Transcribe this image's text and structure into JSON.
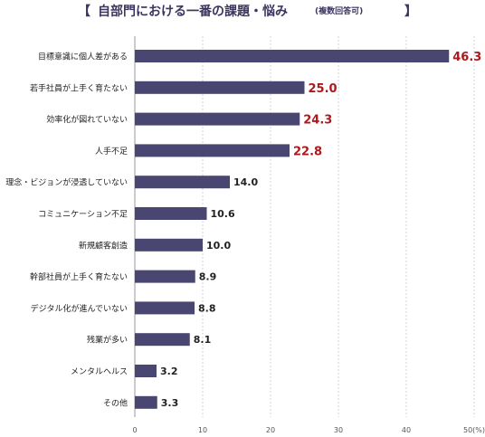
{
  "title": {
    "open_bracket": "【",
    "main": "自部門における一番の課題・悩み",
    "sub": "(複数回答可)",
    "close_bracket": "】"
  },
  "colors": {
    "bar": "#4a4672",
    "highlight_label": "#b0171c",
    "normal_label": "#222222",
    "grid": "#c8c8c8",
    "title": "#3b3560"
  },
  "chart_data": {
    "type": "bar",
    "orientation": "horizontal",
    "title": "自部門における一番の課題・悩み(複数回答可)",
    "categories": [
      "目標意識に個人差がある",
      "若手社員が上手く育たない",
      "効率化が図れていない",
      "人手不足",
      "理念・ビジョンが浸透していない",
      "コミュニケーション不足",
      "新規顧客創造",
      "幹部社員が上手く育たない",
      "デジタル化が進んでいない",
      "残業が多い",
      "メンタルヘルス",
      "その他"
    ],
    "values": [
      46.3,
      25.0,
      24.3,
      22.8,
      14.0,
      10.6,
      10.0,
      8.9,
      8.8,
      8.1,
      3.2,
      3.3
    ],
    "value_labels": [
      "46.3",
      "25.0",
      "24.3",
      "22.8",
      "14.0",
      "10.6",
      "10.0",
      "8.9",
      "8.8",
      "8.1",
      "3.2",
      "3.3"
    ],
    "highlighted": [
      true,
      true,
      true,
      true,
      false,
      false,
      false,
      false,
      false,
      false,
      false,
      false
    ],
    "xlim": [
      0,
      50
    ],
    "x_ticks": [
      "0",
      "10",
      "20",
      "30",
      "40",
      "50"
    ],
    "x_unit": "(%)",
    "grid": "vertical, dashed"
  }
}
